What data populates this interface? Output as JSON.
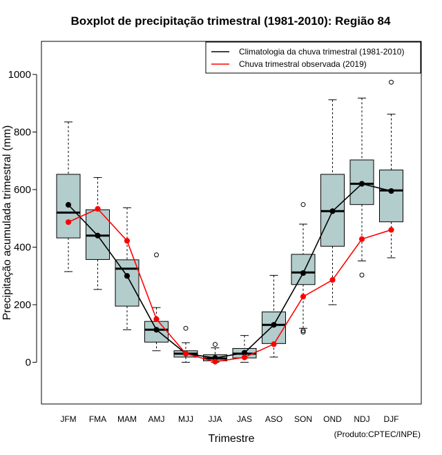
{
  "chart_data": {
    "type": "boxplot",
    "title": "Boxplot de precipitação trimestral (1981-2010): Região 84",
    "xlabel": "Trimestre",
    "ylabel": "Precipitação acumulada trimestral (mm)",
    "ylim": [
      -145,
      1115
    ],
    "yticks": [
      0,
      200,
      400,
      600,
      800,
      1000
    ],
    "credit": "(Produto:CPTEC/INPE)",
    "legend_position": "top-right",
    "colors": {
      "box_fill": "#b3cccc",
      "climatology": "#000000",
      "observed": "#ff0000"
    },
    "categories": [
      "JFM",
      "FMA",
      "MAM",
      "AMJ",
      "MJJ",
      "JJA",
      "JAS",
      "ASO",
      "SON",
      "OND",
      "NDJ",
      "DJF"
    ],
    "boxes": [
      {
        "whisker_low": 315,
        "q1": 432,
        "median": 520,
        "q3": 653,
        "whisker_high": 835,
        "outliers": []
      },
      {
        "whisker_low": 253,
        "q1": 357,
        "median": 440,
        "q3": 530,
        "whisker_high": 642,
        "outliers": []
      },
      {
        "whisker_low": 113,
        "q1": 195,
        "median": 325,
        "q3": 356,
        "whisker_high": 537,
        "outliers": []
      },
      {
        "whisker_low": 40,
        "q1": 70,
        "median": 113,
        "q3": 142,
        "whisker_high": 190,
        "outliers": [
          373
        ]
      },
      {
        "whisker_low": 0,
        "q1": 18,
        "median": 30,
        "q3": 40,
        "whisker_high": 68,
        "outliers": [
          118
        ]
      },
      {
        "whisker_low": 0,
        "q1": 5,
        "median": 13,
        "q3": 26,
        "whisker_high": 50,
        "outliers": [
          62
        ]
      },
      {
        "whisker_low": 0,
        "q1": 15,
        "median": 30,
        "q3": 48,
        "whisker_high": 93,
        "outliers": []
      },
      {
        "whisker_low": 18,
        "q1": 65,
        "median": 130,
        "q3": 175,
        "whisker_high": 302,
        "outliers": []
      },
      {
        "whisker_low": 118,
        "q1": 270,
        "median": 312,
        "q3": 375,
        "whisker_high": 480,
        "outliers": [
          548,
          110,
          105
        ]
      },
      {
        "whisker_low": 200,
        "q1": 403,
        "median": 525,
        "q3": 653,
        "whisker_high": 912,
        "outliers": []
      },
      {
        "whisker_low": 352,
        "q1": 548,
        "median": 620,
        "q3": 703,
        "whisker_high": 918,
        "outliers": [
          303
        ]
      },
      {
        "whisker_low": 363,
        "q1": 488,
        "median": 597,
        "q3": 668,
        "whisker_high": 862,
        "outliers": [
          973
        ]
      }
    ],
    "series": [
      {
        "name": "Climatologia da chuva trimestral (1981-2010)",
        "color": "#000000",
        "values": [
          547,
          440,
          300,
          113,
          30,
          15,
          33,
          130,
          310,
          525,
          620,
          595
        ]
      },
      {
        "name": "Chuva trimestral observada (2019)",
        "color": "#ff0000",
        "values": [
          487,
          533,
          422,
          150,
          30,
          2,
          17,
          63,
          228,
          286,
          428,
          460
        ]
      }
    ]
  }
}
